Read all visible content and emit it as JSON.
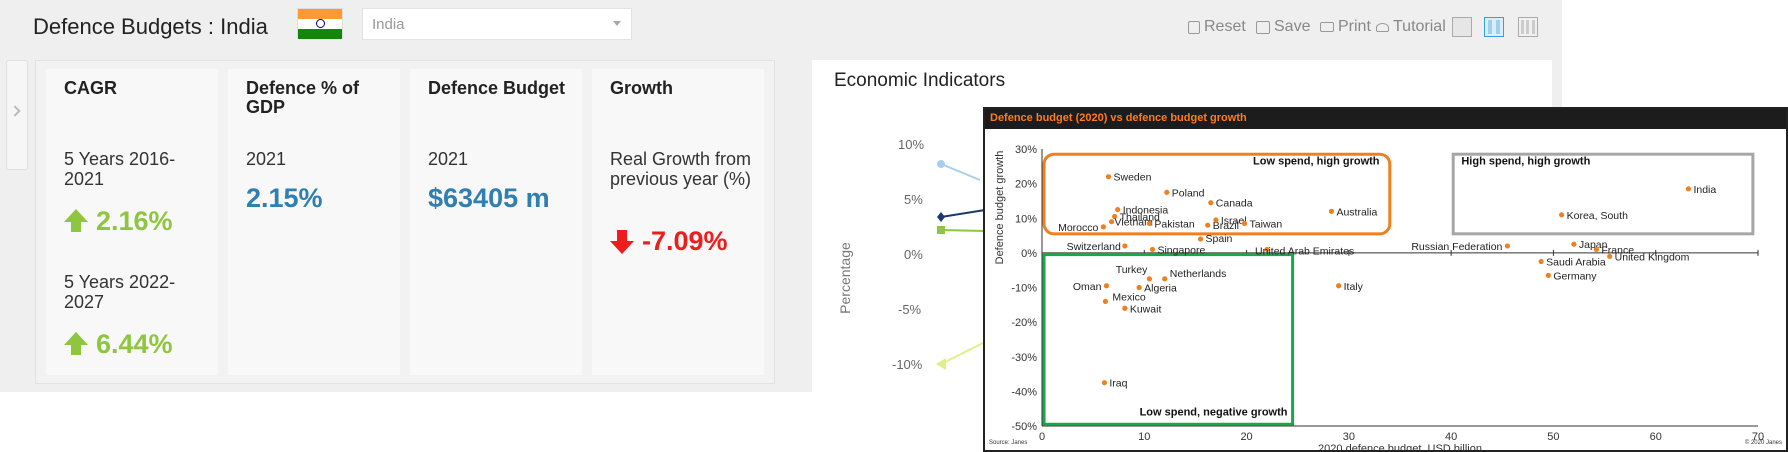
{
  "header": {
    "title": "Defence Budgets : India",
    "country_select": "India"
  },
  "toolbar": {
    "reset": "Reset",
    "save": "Save",
    "print": "Print",
    "tutorial": "Tutorial"
  },
  "cards": {
    "cagr": {
      "title": "CAGR",
      "period1": "5 Years 2016-2021",
      "value1": "2.16%",
      "period2": "5 Years 2022-2027",
      "value2": "6.44%"
    },
    "gdp": {
      "title": "Defence % of GDP",
      "year": "2021",
      "value": "2.15%"
    },
    "budget": {
      "title": "Defence Budget",
      "year": "2021",
      "value": "$63405 m"
    },
    "growth": {
      "title": "Growth",
      "desc": "Real Growth from previous year (%)",
      "value": "-7.09%"
    }
  },
  "econ": {
    "title": "Economic Indicators",
    "ylabel": "Percentage",
    "yticks": [
      "10%",
      "5%",
      "0%",
      "-5%",
      "-10%"
    ]
  },
  "chart_data": {
    "type": "scatter",
    "title": "Defence budget (2020) vs defence budget growth",
    "xlabel": "2020 defence budget, USD billion",
    "ylabel": "Defence budget growth",
    "xlim": [
      0,
      70
    ],
    "ylim": [
      -50,
      30
    ],
    "xticks": [
      "0",
      "10",
      "20",
      "30",
      "40",
      "50",
      "60",
      "70"
    ],
    "yticks": [
      "30%",
      "20%",
      "10%",
      "0%",
      "-10%",
      "-20%",
      "-30%",
      "-40%",
      "-50%"
    ],
    "source": "Source: Janes",
    "copyright": "© 2020 Janes",
    "color": "#f07f1e",
    "regions": [
      {
        "label": "Low spend, high growth",
        "color": "#f07f1e"
      },
      {
        "label": "High spend, high growth",
        "color": "#a6a6a6"
      },
      {
        "label": "Low spend, negative growth",
        "color": "#17a84b"
      }
    ],
    "points": [
      {
        "name": "Sweden",
        "x": 6.5,
        "y": 22
      },
      {
        "name": "Poland",
        "x": 12.2,
        "y": 17.5
      },
      {
        "name": "Indonesia",
        "x": 7.4,
        "y": 12.5
      },
      {
        "name": "Canada",
        "x": 16.5,
        "y": 14.5
      },
      {
        "name": "Thailand",
        "x": 7.1,
        "y": 10.5
      },
      {
        "name": "Brazil",
        "x": 16.2,
        "y": 8
      },
      {
        "name": "Israel",
        "x": 17,
        "y": 9.5
      },
      {
        "name": "Australia",
        "x": 28.3,
        "y": 12
      },
      {
        "name": "Vietnam",
        "x": 6.8,
        "y": 9
      },
      {
        "name": "Pakistan",
        "x": 10.5,
        "y": 8.5
      },
      {
        "name": "Taiwan",
        "x": 19.8,
        "y": 8.5
      },
      {
        "name": "Morocco",
        "x": 6,
        "y": 7.5
      },
      {
        "name": "Spain",
        "x": 15.5,
        "y": 4
      },
      {
        "name": "Switzerland",
        "x": 8.1,
        "y": 2
      },
      {
        "name": "Singapore",
        "x": 10.8,
        "y": 1
      },
      {
        "name": "United Arab Emirates",
        "x": 22,
        "y": 1
      },
      {
        "name": "India",
        "x": 63.2,
        "y": 18.5
      },
      {
        "name": "Korea, South",
        "x": 50.8,
        "y": 11
      },
      {
        "name": "Russian Federation",
        "x": 45.5,
        "y": 2
      },
      {
        "name": "Japan",
        "x": 52,
        "y": 2.5
      },
      {
        "name": "France",
        "x": 54.2,
        "y": 1
      },
      {
        "name": "United Kingdom",
        "x": 55.5,
        "y": -1
      },
      {
        "name": "Saudi Arabia",
        "x": 48.8,
        "y": -2.5
      },
      {
        "name": "Germany",
        "x": 49.5,
        "y": -6.5
      },
      {
        "name": "Turkey",
        "x": 10.5,
        "y": -7.5
      },
      {
        "name": "Netherlands",
        "x": 12,
        "y": -7.5
      },
      {
        "name": "Oman",
        "x": 6.3,
        "y": -9.5
      },
      {
        "name": "Algeria",
        "x": 9.5,
        "y": -10
      },
      {
        "name": "Italy",
        "x": 29,
        "y": -9.5
      },
      {
        "name": "Mexico",
        "x": 6.2,
        "y": -14
      },
      {
        "name": "Kuwait",
        "x": 8.1,
        "y": -16
      },
      {
        "name": "Iraq",
        "x": 6.1,
        "y": -37.5
      }
    ]
  }
}
